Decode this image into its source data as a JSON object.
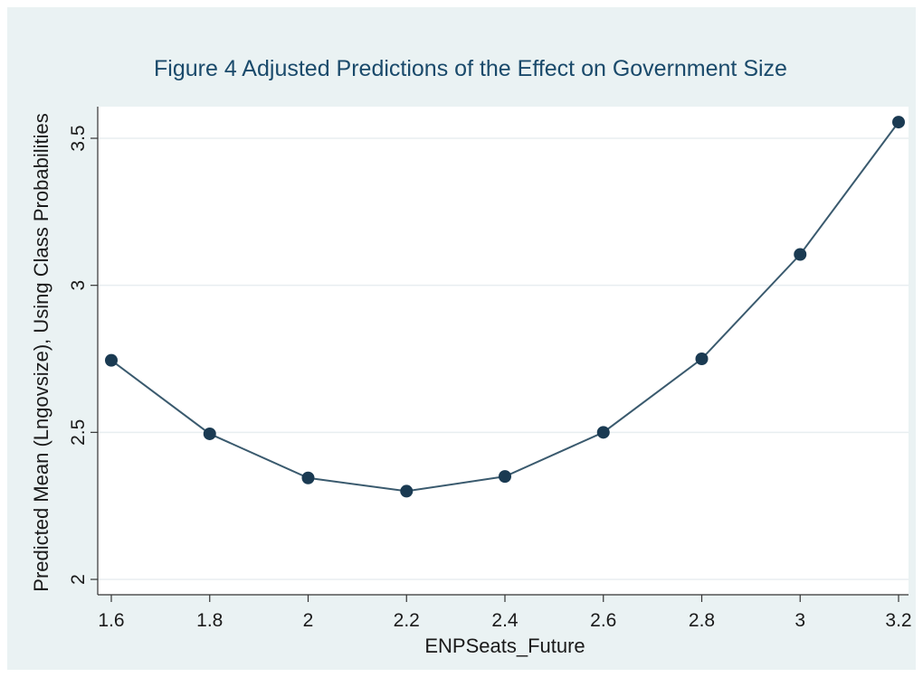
{
  "chart_data": {
    "type": "line",
    "title": "Figure 4 Adjusted Predictions of the Effect on Government Size",
    "xlabel": "ENPSeats_Future",
    "ylabel": "Predicted Mean (Lngovsize), Using Class Probabilities",
    "x": [
      1.6,
      1.8,
      2.0,
      2.2,
      2.4,
      2.6,
      2.8,
      3.0,
      3.2
    ],
    "series": [
      {
        "values": [
          2.745,
          2.495,
          2.345,
          2.3,
          2.35,
          2.5,
          2.75,
          3.105,
          3.555
        ]
      }
    ],
    "xlim": [
      1.6,
      3.2
    ],
    "ylim": [
      2.0,
      3.6
    ],
    "xticks": [
      1.6,
      1.8,
      2.0,
      2.2,
      2.4,
      2.6,
      2.8,
      3.0,
      3.2
    ],
    "xtick_labels": [
      "1.6",
      "1.8",
      "2",
      "2.2",
      "2.4",
      "2.6",
      "2.8",
      "3",
      "3.2"
    ],
    "yticks": [
      2.0,
      2.5,
      3.0,
      3.5
    ],
    "ytick_labels": [
      "2",
      "2.5",
      "3",
      "3.5"
    ],
    "grid": true,
    "colors": {
      "outer_background": "#eaf2f3",
      "plot_background": "#ffffff",
      "line": "#3a5a6e",
      "marker": "#1a3a52",
      "title": "#1a4a6b",
      "grid": "#e8eef0"
    }
  }
}
